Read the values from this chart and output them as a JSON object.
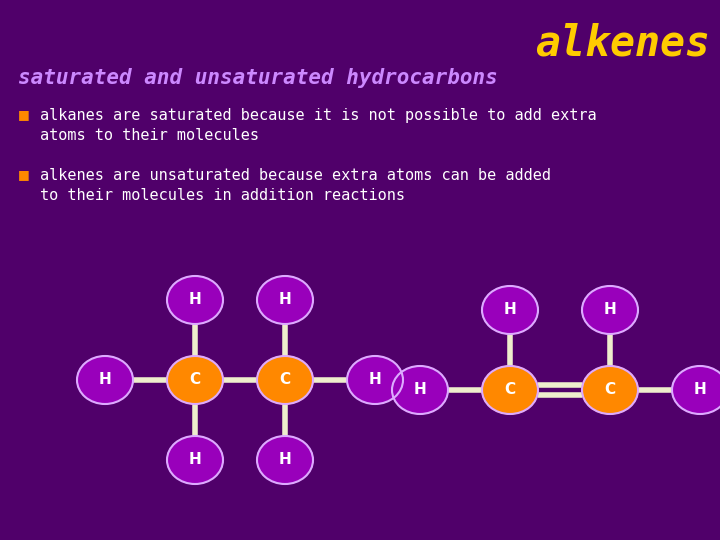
{
  "bg_color": "#50006a",
  "title": "alkenes",
  "title_color": "#ffcc00",
  "subtitle": "saturated and unsaturated hydrocarbons",
  "subtitle_color": "#cc88ff",
  "bullet_color": "#ff8800",
  "bullet1_line1": "alkanes are saturated because it is not possible to add extra",
  "bullet1_line2": "atoms to their molecules",
  "bullet2_line1": "alkenes are unsaturated because extra atoms can be added",
  "bullet2_line2": "to their molecules in addition reactions",
  "text_color": "#ffffff",
  "node_H_color": "#9900bb",
  "node_C_color": "#ff8800",
  "node_border_color": "#ddaaff",
  "bond_color": "#eeeecc",
  "figsize": [
    7.2,
    5.4
  ],
  "dpi": 100
}
